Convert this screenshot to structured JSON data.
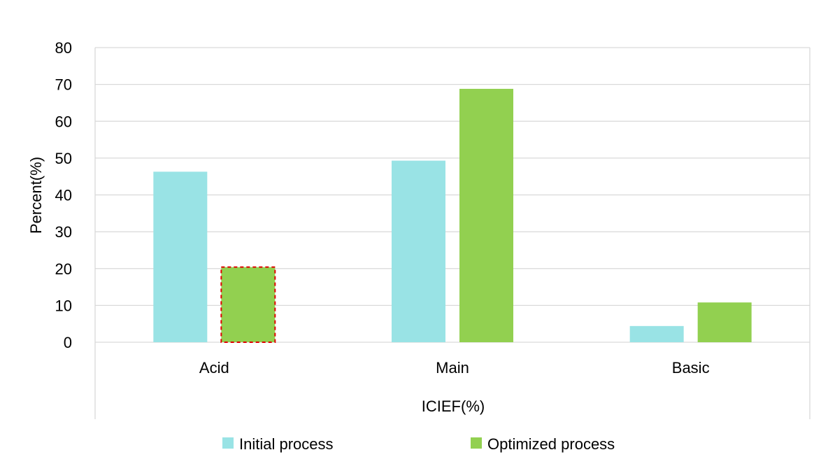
{
  "chart_data": {
    "type": "bar",
    "categories": [
      "Acid",
      "Main",
      "Basic"
    ],
    "series": [
      {
        "name": "Initial process",
        "values": [
          46.3,
          49.3,
          4.4
        ],
        "color": "#99E3E5"
      },
      {
        "name": "Optimized process",
        "values": [
          20.4,
          68.8,
          10.8
        ],
        "color": "#92D050"
      }
    ],
    "highlight": {
      "series": 1,
      "category": 0,
      "border_color": "#E00000",
      "border_style": "dashed"
    },
    "title": "",
    "xlabel": "ICIEF(%)",
    "ylabel": "Percent(%)",
    "ylim": [
      0,
      80
    ],
    "yticks": [
      "0",
      "10",
      "20",
      "30",
      "40",
      "50",
      "60",
      "70",
      "80"
    ],
    "grid": true,
    "legend_position": "bottom"
  }
}
